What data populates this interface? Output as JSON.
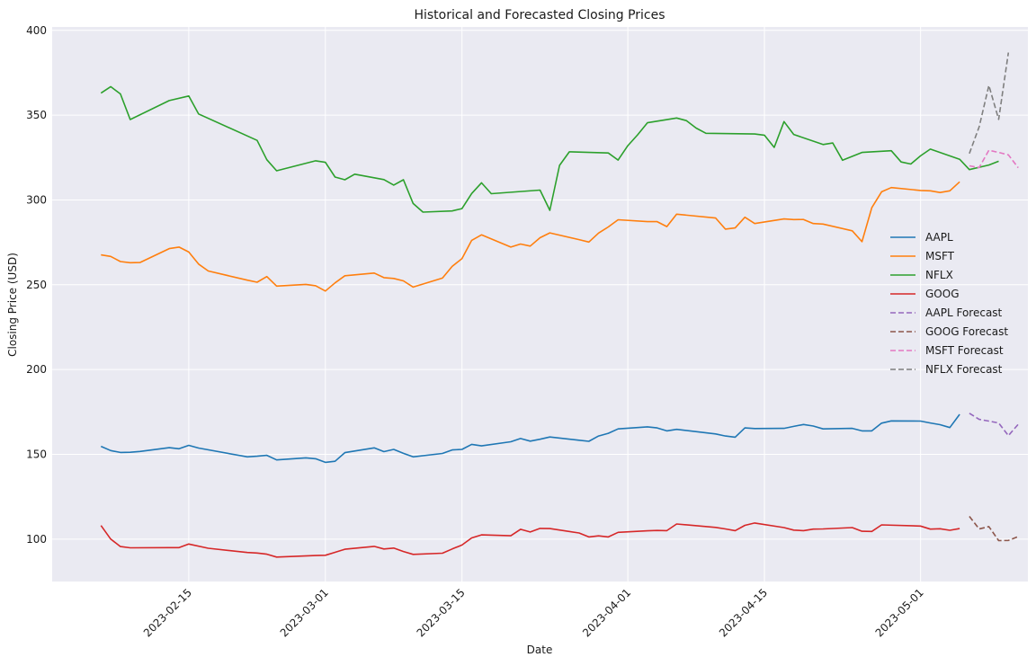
{
  "chart_data": {
    "type": "line",
    "title": "Historical and Forecasted Closing Prices",
    "xlabel": "Date",
    "ylabel": "Closing Price (USD)",
    "x_axis_type": "date",
    "xlim": [
      "2023-02-01",
      "2023-05-12"
    ],
    "ylim": [
      75,
      402
    ],
    "x_ticks": [
      "2023-02-15",
      "2023-03-01",
      "2023-03-15",
      "2023-04-01",
      "2023-04-15",
      "2023-05-01"
    ],
    "y_ticks": [
      100,
      150,
      200,
      250,
      300,
      350,
      400
    ],
    "grid": true,
    "legend_position": "center-right",
    "background_color": "#eaeaf2",
    "series": [
      {
        "name": "AAPL",
        "style": "solid",
        "color": "#1f77b4",
        "points": [
          [
            "2023-02-06",
            154.7
          ],
          [
            "2023-02-07",
            152.2
          ],
          [
            "2023-02-08",
            151.1
          ],
          [
            "2023-02-09",
            151.2
          ],
          [
            "2023-02-10",
            151.7
          ],
          [
            "2023-02-13",
            153.9
          ],
          [
            "2023-02-14",
            153.3
          ],
          [
            "2023-02-15",
            155.3
          ],
          [
            "2023-02-16",
            153.7
          ],
          [
            "2023-02-21",
            148.5
          ],
          [
            "2023-02-22",
            148.9
          ],
          [
            "2023-02-23",
            149.4
          ],
          [
            "2023-02-24",
            146.7
          ],
          [
            "2023-02-27",
            147.9
          ],
          [
            "2023-02-28",
            147.4
          ],
          [
            "2023-03-01",
            145.3
          ],
          [
            "2023-03-02",
            145.9
          ],
          [
            "2023-03-03",
            151.0
          ],
          [
            "2023-03-06",
            153.8
          ],
          [
            "2023-03-07",
            151.6
          ],
          [
            "2023-03-08",
            152.9
          ],
          [
            "2023-03-09",
            150.6
          ],
          [
            "2023-03-10",
            148.5
          ],
          [
            "2023-03-13",
            150.5
          ],
          [
            "2023-03-14",
            152.6
          ],
          [
            "2023-03-15",
            152.9
          ],
          [
            "2023-03-16",
            155.9
          ],
          [
            "2023-03-17",
            155.0
          ],
          [
            "2023-03-20",
            157.4
          ],
          [
            "2023-03-21",
            159.3
          ],
          [
            "2023-03-22",
            157.8
          ],
          [
            "2023-03-23",
            158.9
          ],
          [
            "2023-03-24",
            160.2
          ],
          [
            "2023-03-27",
            158.3
          ],
          [
            "2023-03-28",
            157.7
          ],
          [
            "2023-03-29",
            160.8
          ],
          [
            "2023-03-30",
            162.4
          ],
          [
            "2023-03-31",
            165.0
          ],
          [
            "2023-04-03",
            166.2
          ],
          [
            "2023-04-04",
            165.6
          ],
          [
            "2023-04-05",
            163.8
          ],
          [
            "2023-04-06",
            164.7
          ],
          [
            "2023-04-10",
            162.0
          ],
          [
            "2023-04-11",
            160.8
          ],
          [
            "2023-04-12",
            160.1
          ],
          [
            "2023-04-13",
            165.6
          ],
          [
            "2023-04-14",
            165.2
          ],
          [
            "2023-04-17",
            165.3
          ],
          [
            "2023-04-18",
            166.5
          ],
          [
            "2023-04-19",
            167.6
          ],
          [
            "2023-04-20",
            166.7
          ],
          [
            "2023-04-21",
            165.0
          ],
          [
            "2023-04-24",
            165.3
          ],
          [
            "2023-04-25",
            163.8
          ],
          [
            "2023-04-26",
            163.8
          ],
          [
            "2023-04-27",
            168.4
          ],
          [
            "2023-04-28",
            169.7
          ],
          [
            "2023-05-01",
            169.6
          ],
          [
            "2023-05-02",
            168.5
          ],
          [
            "2023-05-03",
            167.5
          ],
          [
            "2023-05-04",
            165.8
          ],
          [
            "2023-05-05",
            173.6
          ]
        ]
      },
      {
        "name": "MSFT",
        "style": "solid",
        "color": "#ff7f0e",
        "points": [
          [
            "2023-02-06",
            267.6
          ],
          [
            "2023-02-07",
            266.7
          ],
          [
            "2023-02-08",
            263.7
          ],
          [
            "2023-02-09",
            263.0
          ],
          [
            "2023-02-10",
            263.1
          ],
          [
            "2023-02-13",
            271.3
          ],
          [
            "2023-02-14",
            272.2
          ],
          [
            "2023-02-15",
            269.3
          ],
          [
            "2023-02-16",
            262.2
          ],
          [
            "2023-02-17",
            258.1
          ],
          [
            "2023-02-21",
            252.7
          ],
          [
            "2023-02-22",
            251.5
          ],
          [
            "2023-02-23",
            254.8
          ],
          [
            "2023-02-24",
            249.2
          ],
          [
            "2023-02-27",
            250.2
          ],
          [
            "2023-02-28",
            249.4
          ],
          [
            "2023-03-01",
            246.3
          ],
          [
            "2023-03-02",
            251.1
          ],
          [
            "2023-03-03",
            255.3
          ],
          [
            "2023-03-06",
            256.9
          ],
          [
            "2023-03-07",
            254.2
          ],
          [
            "2023-03-08",
            253.7
          ],
          [
            "2023-03-09",
            252.3
          ],
          [
            "2023-03-10",
            248.6
          ],
          [
            "2023-03-13",
            253.9
          ],
          [
            "2023-03-14",
            260.8
          ],
          [
            "2023-03-15",
            265.4
          ],
          [
            "2023-03-16",
            276.2
          ],
          [
            "2023-03-17",
            279.4
          ],
          [
            "2023-03-20",
            272.2
          ],
          [
            "2023-03-21",
            274.0
          ],
          [
            "2023-03-22",
            272.8
          ],
          [
            "2023-03-23",
            277.7
          ],
          [
            "2023-03-24",
            280.6
          ],
          [
            "2023-03-27",
            276.6
          ],
          [
            "2023-03-28",
            275.2
          ],
          [
            "2023-03-29",
            280.5
          ],
          [
            "2023-03-30",
            284.1
          ],
          [
            "2023-03-31",
            288.3
          ],
          [
            "2023-04-03",
            287.2
          ],
          [
            "2023-04-04",
            287.2
          ],
          [
            "2023-04-05",
            284.3
          ],
          [
            "2023-04-06",
            291.6
          ],
          [
            "2023-04-10",
            289.3
          ],
          [
            "2023-04-11",
            282.8
          ],
          [
            "2023-04-12",
            283.5
          ],
          [
            "2023-04-13",
            289.8
          ],
          [
            "2023-04-14",
            286.1
          ],
          [
            "2023-04-17",
            288.8
          ],
          [
            "2023-04-18",
            288.4
          ],
          [
            "2023-04-19",
            288.5
          ],
          [
            "2023-04-20",
            286.1
          ],
          [
            "2023-04-21",
            285.8
          ],
          [
            "2023-04-24",
            281.8
          ],
          [
            "2023-04-25",
            275.4
          ],
          [
            "2023-04-26",
            295.4
          ],
          [
            "2023-04-27",
            304.8
          ],
          [
            "2023-04-28",
            307.3
          ],
          [
            "2023-05-01",
            305.6
          ],
          [
            "2023-05-02",
            305.4
          ],
          [
            "2023-05-03",
            304.4
          ],
          [
            "2023-05-04",
            305.4
          ],
          [
            "2023-05-05",
            310.7
          ]
        ]
      },
      {
        "name": "NFLX",
        "style": "solid",
        "color": "#2ca02c",
        "points": [
          [
            "2023-02-06",
            363.0
          ],
          [
            "2023-02-07",
            366.8
          ],
          [
            "2023-02-08",
            362.5
          ],
          [
            "2023-02-09",
            347.4
          ],
          [
            "2023-02-13",
            358.6
          ],
          [
            "2023-02-15",
            361.3
          ],
          [
            "2023-02-16",
            350.7
          ],
          [
            "2023-02-22",
            335.1
          ],
          [
            "2023-02-23",
            323.7
          ],
          [
            "2023-02-24",
            317.2
          ],
          [
            "2023-02-28",
            323.1
          ],
          [
            "2023-03-01",
            322.2
          ],
          [
            "2023-03-02",
            313.5
          ],
          [
            "2023-03-03",
            311.9
          ],
          [
            "2023-03-04",
            315.2
          ],
          [
            "2023-03-07",
            312.0
          ],
          [
            "2023-03-08",
            308.8
          ],
          [
            "2023-03-09",
            311.9
          ],
          [
            "2023-03-10",
            297.9
          ],
          [
            "2023-03-11",
            292.8
          ],
          [
            "2023-03-14",
            293.5
          ],
          [
            "2023-03-15",
            294.9
          ],
          [
            "2023-03-16",
            303.8
          ],
          [
            "2023-03-17",
            310.1
          ],
          [
            "2023-03-18",
            303.7
          ],
          [
            "2023-03-23",
            305.8
          ],
          [
            "2023-03-24",
            293.9
          ],
          [
            "2023-03-25",
            320.4
          ],
          [
            "2023-03-26",
            328.4
          ],
          [
            "2023-03-30",
            327.7
          ],
          [
            "2023-03-31",
            323.5
          ],
          [
            "2023-04-01",
            332.0
          ],
          [
            "2023-04-02",
            338.4
          ],
          [
            "2023-04-03",
            345.5
          ],
          [
            "2023-04-06",
            348.3
          ],
          [
            "2023-04-07",
            346.8
          ],
          [
            "2023-04-08",
            342.4
          ],
          [
            "2023-04-09",
            339.3
          ],
          [
            "2023-04-14",
            338.9
          ],
          [
            "2023-04-15",
            338.2
          ],
          [
            "2023-04-16",
            331.0
          ],
          [
            "2023-04-17",
            346.2
          ],
          [
            "2023-04-18",
            338.6
          ],
          [
            "2023-04-21",
            332.7
          ],
          [
            "2023-04-22",
            333.6
          ],
          [
            "2023-04-23",
            323.4
          ],
          [
            "2023-04-25",
            328.0
          ],
          [
            "2023-04-28",
            329.0
          ],
          [
            "2023-04-29",
            322.4
          ],
          [
            "2023-04-30",
            321.2
          ],
          [
            "2023-05-01",
            326.0
          ],
          [
            "2023-05-02",
            330.0
          ],
          [
            "2023-05-05",
            324.0
          ],
          [
            "2023-05-06",
            317.9
          ],
          [
            "2023-05-08",
            320.6
          ],
          [
            "2023-05-09",
            322.8
          ]
        ]
      },
      {
        "name": "GOOG",
        "style": "solid",
        "color": "#d62728",
        "points": [
          [
            "2023-02-06",
            108.0
          ],
          [
            "2023-02-07",
            100.0
          ],
          [
            "2023-02-08",
            95.6
          ],
          [
            "2023-02-09",
            94.9
          ],
          [
            "2023-02-13",
            95.0
          ],
          [
            "2023-02-14",
            95.0
          ],
          [
            "2023-02-15",
            97.1
          ],
          [
            "2023-02-17",
            94.6
          ],
          [
            "2023-02-21",
            92.1
          ],
          [
            "2023-02-22",
            91.8
          ],
          [
            "2023-02-23",
            91.1
          ],
          [
            "2023-02-24",
            89.4
          ],
          [
            "2023-02-28",
            90.3
          ],
          [
            "2023-03-01",
            90.5
          ],
          [
            "2023-03-02",
            92.2
          ],
          [
            "2023-03-03",
            94.0
          ],
          [
            "2023-03-06",
            95.7
          ],
          [
            "2023-03-07",
            94.2
          ],
          [
            "2023-03-08",
            94.7
          ],
          [
            "2023-03-09",
            92.7
          ],
          [
            "2023-03-10",
            91.0
          ],
          [
            "2023-03-13",
            91.7
          ],
          [
            "2023-03-14",
            94.2
          ],
          [
            "2023-03-15",
            96.5
          ],
          [
            "2023-03-16",
            100.7
          ],
          [
            "2023-03-17",
            102.5
          ],
          [
            "2023-03-20",
            102.0
          ],
          [
            "2023-03-21",
            105.8
          ],
          [
            "2023-03-22",
            104.2
          ],
          [
            "2023-03-23",
            106.3
          ],
          [
            "2023-03-24",
            106.2
          ],
          [
            "2023-03-27",
            103.6
          ],
          [
            "2023-03-28",
            101.3
          ],
          [
            "2023-03-29",
            101.9
          ],
          [
            "2023-03-30",
            101.3
          ],
          [
            "2023-03-31",
            104.0
          ],
          [
            "2023-04-03",
            104.9
          ],
          [
            "2023-04-04",
            105.1
          ],
          [
            "2023-04-05",
            105.0
          ],
          [
            "2023-04-06",
            108.9
          ],
          [
            "2023-04-10",
            106.9
          ],
          [
            "2023-04-11",
            106.0
          ],
          [
            "2023-04-12",
            105.0
          ],
          [
            "2023-04-13",
            108.1
          ],
          [
            "2023-04-14",
            109.5
          ],
          [
            "2023-04-17",
            106.8
          ],
          [
            "2023-04-18",
            105.3
          ],
          [
            "2023-04-19",
            105.0
          ],
          [
            "2023-04-20",
            105.9
          ],
          [
            "2023-04-21",
            106.0
          ],
          [
            "2023-04-24",
            106.8
          ],
          [
            "2023-04-25",
            104.6
          ],
          [
            "2023-04-26",
            104.5
          ],
          [
            "2023-04-27",
            108.4
          ],
          [
            "2023-05-01",
            107.7
          ],
          [
            "2023-05-02",
            105.9
          ],
          [
            "2023-05-03",
            106.1
          ],
          [
            "2023-05-04",
            105.2
          ],
          [
            "2023-05-05",
            106.2
          ]
        ]
      },
      {
        "name": "AAPL Forecast",
        "style": "dashed",
        "color": "#9467bd",
        "points": [
          [
            "2023-05-06",
            174.2
          ],
          [
            "2023-05-07",
            170.6
          ],
          [
            "2023-05-08",
            169.6
          ],
          [
            "2023-05-09",
            168.5
          ],
          [
            "2023-05-10",
            161.0
          ],
          [
            "2023-05-11",
            167.7
          ]
        ]
      },
      {
        "name": "GOOG Forecast",
        "style": "dashed",
        "color": "#8c564b",
        "points": [
          [
            "2023-05-06",
            113.4
          ],
          [
            "2023-05-07",
            106.0
          ],
          [
            "2023-05-08",
            107.4
          ],
          [
            "2023-05-09",
            99.1
          ],
          [
            "2023-05-10",
            99.2
          ],
          [
            "2023-05-11",
            101.5
          ]
        ]
      },
      {
        "name": "MSFT Forecast",
        "style": "dashed",
        "color": "#e377c2",
        "points": [
          [
            "2023-05-06",
            320.1
          ],
          [
            "2023-05-07",
            319.1
          ],
          [
            "2023-05-08",
            329.3
          ],
          [
            "2023-05-09",
            328.0
          ],
          [
            "2023-05-10",
            326.6
          ],
          [
            "2023-05-11",
            319.0
          ]
        ]
      },
      {
        "name": "NFLX Forecast",
        "style": "dashed",
        "color": "#7f7f7f",
        "points": [
          [
            "2023-05-06",
            327.4
          ],
          [
            "2023-05-07",
            343.1
          ],
          [
            "2023-05-08",
            367.5
          ],
          [
            "2023-05-09",
            347.5
          ],
          [
            "2023-05-10",
            386.9
          ]
        ]
      }
    ]
  }
}
